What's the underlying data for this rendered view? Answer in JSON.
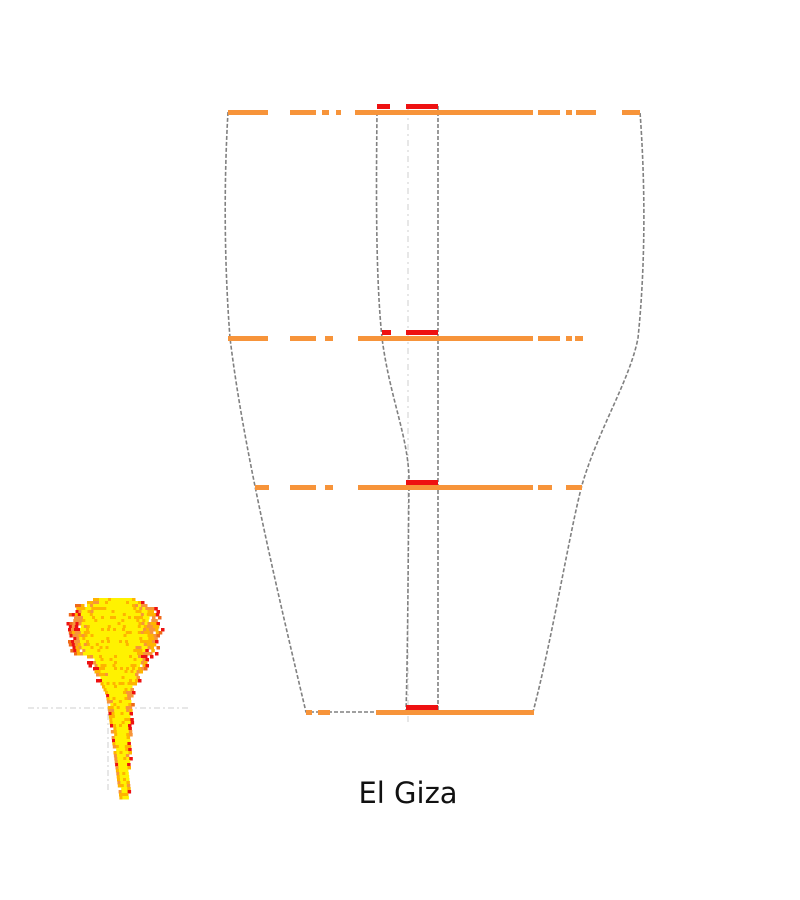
{
  "title": "El Giza",
  "colors": {
    "background": "#ffffff",
    "outline": "#808080",
    "axis": "#cfcfcf",
    "orange": "#f7943a",
    "red": "#ee1111",
    "yellow": "#fff200",
    "amber": "#ffb400",
    "dark_orange": "#f06a1a"
  }
}
